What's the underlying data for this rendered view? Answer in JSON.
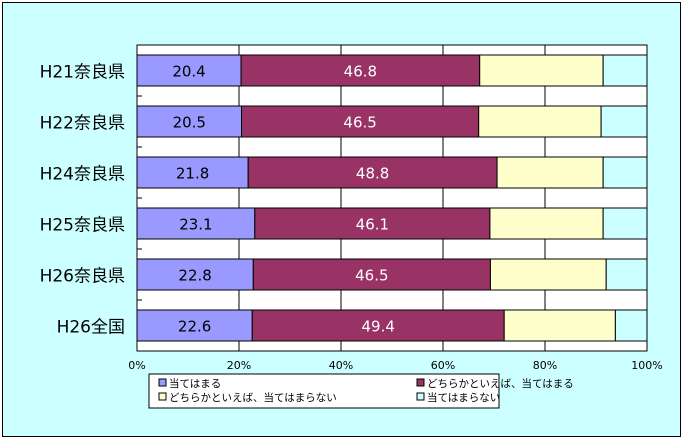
{
  "chart_data": {
    "type": "bar",
    "orientation": "horizontal",
    "stacked": "percent",
    "categories": [
      "H21奈良県",
      "H22奈良県",
      "H24奈良県",
      "H25奈良県",
      "H26奈良県",
      "H26全国"
    ],
    "series": [
      {
        "name": "当てはまる",
        "color": "#9999ff",
        "values": [
          20.4,
          20.5,
          21.8,
          23.1,
          22.8,
          22.6
        ]
      },
      {
        "name": "どちらかといえば、当てはまる",
        "color": "#993366",
        "values": [
          46.8,
          46.5,
          48.8,
          46.1,
          46.5,
          49.4
        ]
      },
      {
        "name": "どちらかといえば、当てはまらない",
        "color": "#ffffcc",
        "values": [
          24.2,
          24.0,
          20.8,
          22.2,
          22.7,
          21.8
        ]
      },
      {
        "name": "当てはまらない",
        "color": "#ccffff",
        "values": [
          8.6,
          9.0,
          8.6,
          8.6,
          8.0,
          6.2
        ]
      }
    ],
    "labeled_series": [
      0,
      1
    ],
    "xlim": [
      0,
      100
    ],
    "xticks": [
      "0%",
      "20%",
      "40%",
      "60%",
      "80%",
      "100%"
    ],
    "grid": true,
    "legend_position": "bottom",
    "background": "#ccffff",
    "plot_background": "#ffffff"
  }
}
